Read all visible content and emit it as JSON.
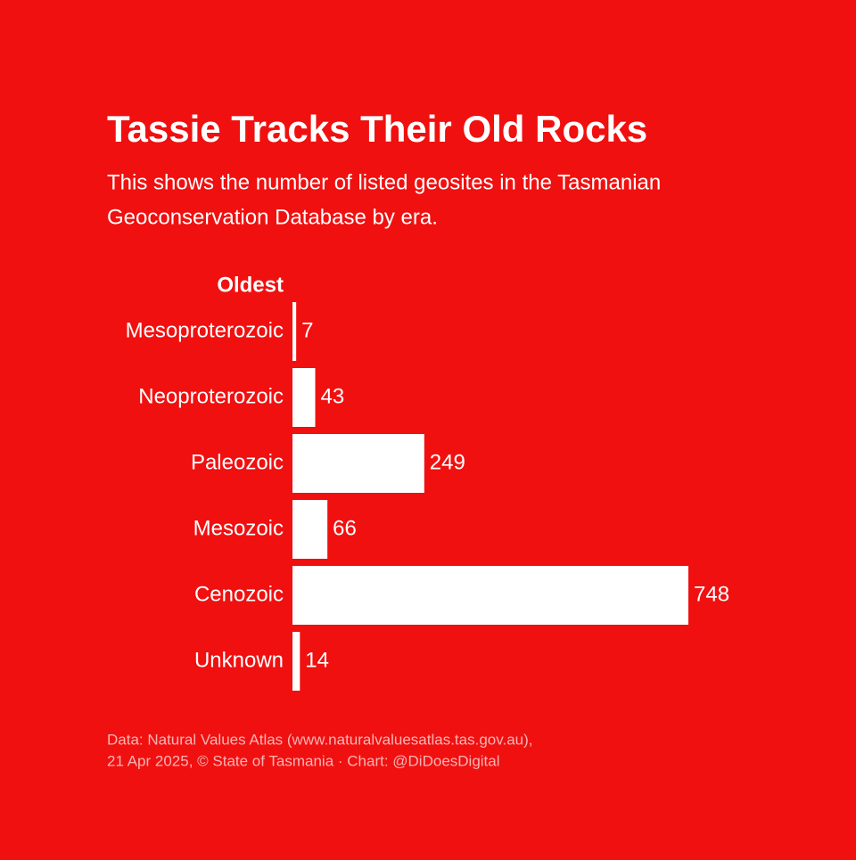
{
  "chart_data": {
    "type": "bar",
    "orientation": "horizontal",
    "title": "Tassie Tracks Their Old Rocks",
    "subtitle": [
      "This shows the number of listed geosites in the Tasmanian",
      "Geoconservation Database by era."
    ],
    "annotation": "Oldest",
    "categories": [
      "Mesoproterozoic",
      "Neoproterozoic",
      "Paleozoic",
      "Mesozoic",
      "Cenozoic",
      "Unknown"
    ],
    "values": [
      7,
      43,
      249,
      66,
      748,
      14
    ],
    "color": "#ffffff",
    "source": [
      "Data: Natural Values Atlas (www.naturalvaluesatlas.tas.gov.au),",
      "21 Apr 2025, © State of Tasmania · Chart: @DiDoesDigital"
    ]
  }
}
